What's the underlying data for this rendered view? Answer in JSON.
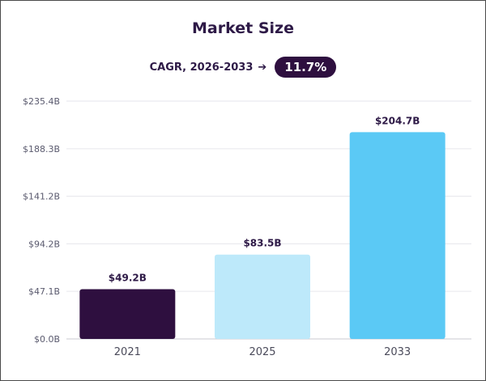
{
  "title": "Market Size",
  "cagr": {
    "label": "CAGR, 2026-2033",
    "arrow": "➔",
    "value": "11.7%"
  },
  "chart_data": {
    "type": "bar",
    "title": "Market Size",
    "categories": [
      "2021",
      "2025",
      "2033"
    ],
    "values": [
      49.2,
      83.5,
      204.7
    ],
    "value_labels": [
      "$49.2B",
      "$83.5B",
      "$204.7B"
    ],
    "bar_colors": [
      "#2e0f3f",
      "#bde9fa",
      "#5bc9f5"
    ],
    "yticks": [
      0,
      47.1,
      94.2,
      141.2,
      188.3,
      235.4
    ],
    "ytick_labels": [
      "$0.0B",
      "$47.1B",
      "$94.2B",
      "$141.2B",
      "$188.3B",
      "$235.4B"
    ],
    "ylim": [
      0,
      235.4
    ],
    "xlabel": "",
    "ylabel": "",
    "grid": true,
    "legend": "none"
  }
}
